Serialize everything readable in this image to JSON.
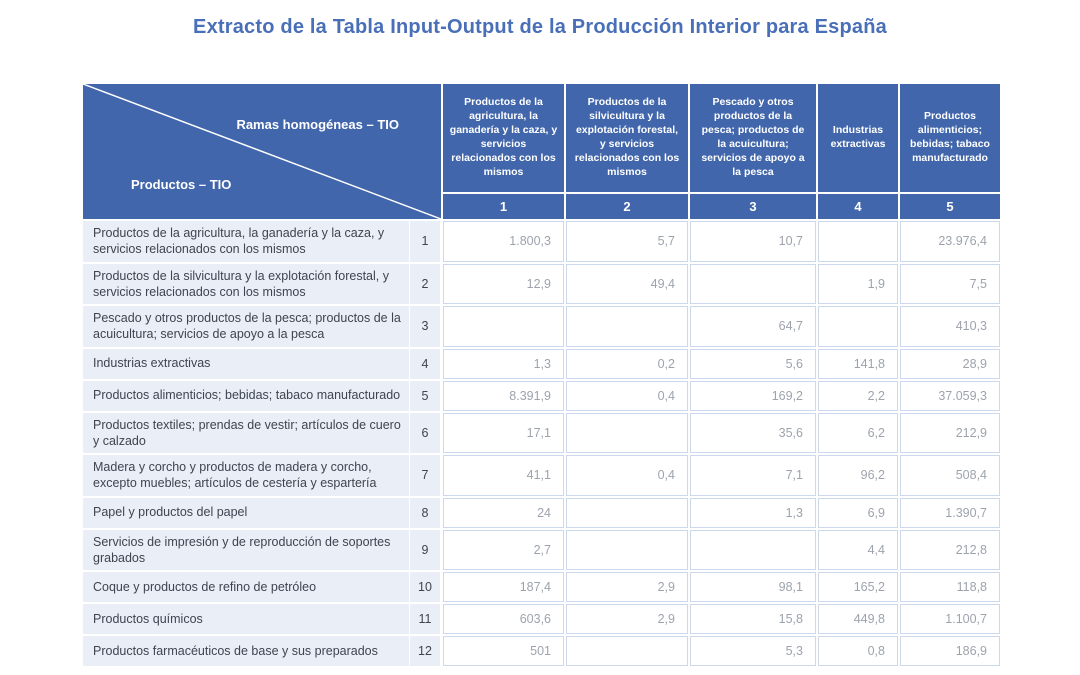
{
  "title": "Extracto de la Tabla Input-Output de la Producción Interior para España",
  "corner": {
    "top_label": "Ramas homogéneas – TIO",
    "bottom_label": "Productos – TIO"
  },
  "colors": {
    "header_blue": "#4166ab",
    "title_blue": "#4a6fb9",
    "row_header_bg": "#eaeef7",
    "value_border": "#ccd8ec",
    "value_text": "#9da3ad",
    "label_text": "#3e4450"
  },
  "chart_data": {
    "type": "table",
    "title": "Extracto de la Tabla Input-Output de la Producción Interior para España",
    "column_axis_label": "Ramas homogéneas – TIO",
    "row_axis_label": "Productos – TIO",
    "columns": [
      {
        "number": "1",
        "label": "Productos de la agricultura, la ganadería y la caza, y servicios relacionados con los mismos"
      },
      {
        "number": "2",
        "label": "Productos de la silvicultura y la explotación forestal, y servicios relacionados con los mismos"
      },
      {
        "number": "3",
        "label": "Pescado y otros productos de la pesca; productos de la acuicultura; servicios de apoyo a la pesca"
      },
      {
        "number": "4",
        "label": "Industrias extractivas"
      },
      {
        "number": "5",
        "label": "Productos alimenticios; bebidas; tabaco manufacturado"
      }
    ],
    "rows": [
      {
        "number": "1",
        "label": "Productos de la agricultura, la ganadería y la caza, y servicios relacionados con los mismos",
        "values": [
          "1.800,3",
          "5,7",
          "10,7",
          "",
          "23.976,4"
        ]
      },
      {
        "number": "2",
        "label": "Productos de la silvicultura y la explotación forestal, y servicios relacionados con los mismos",
        "values": [
          "12,9",
          "49,4",
          "",
          "1,9",
          "7,5"
        ]
      },
      {
        "number": "3",
        "label": "Pescado y otros productos de la pesca; productos de la acuicultura; servicios de apoyo a la pesca",
        "values": [
          "",
          "",
          "64,7",
          "",
          "410,3"
        ]
      },
      {
        "number": "4",
        "label": "Industrias extractivas",
        "values": [
          "1,3",
          "0,2",
          "5,6",
          "141,8",
          "28,9"
        ]
      },
      {
        "number": "5",
        "label": "Productos alimenticios; bebidas; tabaco manufacturado",
        "values": [
          "8.391,9",
          "0,4",
          "169,2",
          "2,2",
          "37.059,3"
        ]
      },
      {
        "number": "6",
        "label": "Productos textiles; prendas de vestir; artículos de cuero y calzado",
        "values": [
          "17,1",
          "",
          "35,6",
          "6,2",
          "212,9"
        ]
      },
      {
        "number": "7",
        "label": "Madera y corcho y productos de madera y corcho, excepto muebles; artículos de cestería y espartería",
        "values": [
          "41,1",
          "0,4",
          "7,1",
          "96,2",
          "508,4"
        ]
      },
      {
        "number": "8",
        "label": "Papel y productos del papel",
        "values": [
          "24",
          "",
          "1,3",
          "6,9",
          "1.390,7"
        ]
      },
      {
        "number": "9",
        "label": "Servicios de impresión y de reproducción de soportes grabados",
        "values": [
          "2,7",
          "",
          "",
          "4,4",
          "212,8"
        ]
      },
      {
        "number": "10",
        "label": "Coque y productos de refino de petróleo",
        "values": [
          "187,4",
          "2,9",
          "98,1",
          "165,2",
          "118,8"
        ]
      },
      {
        "number": "11",
        "label": "Productos químicos",
        "values": [
          "603,6",
          "2,9",
          "15,8",
          "449,8",
          "1.100,7"
        ]
      },
      {
        "number": "12",
        "label": "Productos farmacéuticos de base y sus preparados",
        "values": [
          "501",
          "",
          "5,3",
          "0,8",
          "186,9"
        ]
      }
    ]
  }
}
